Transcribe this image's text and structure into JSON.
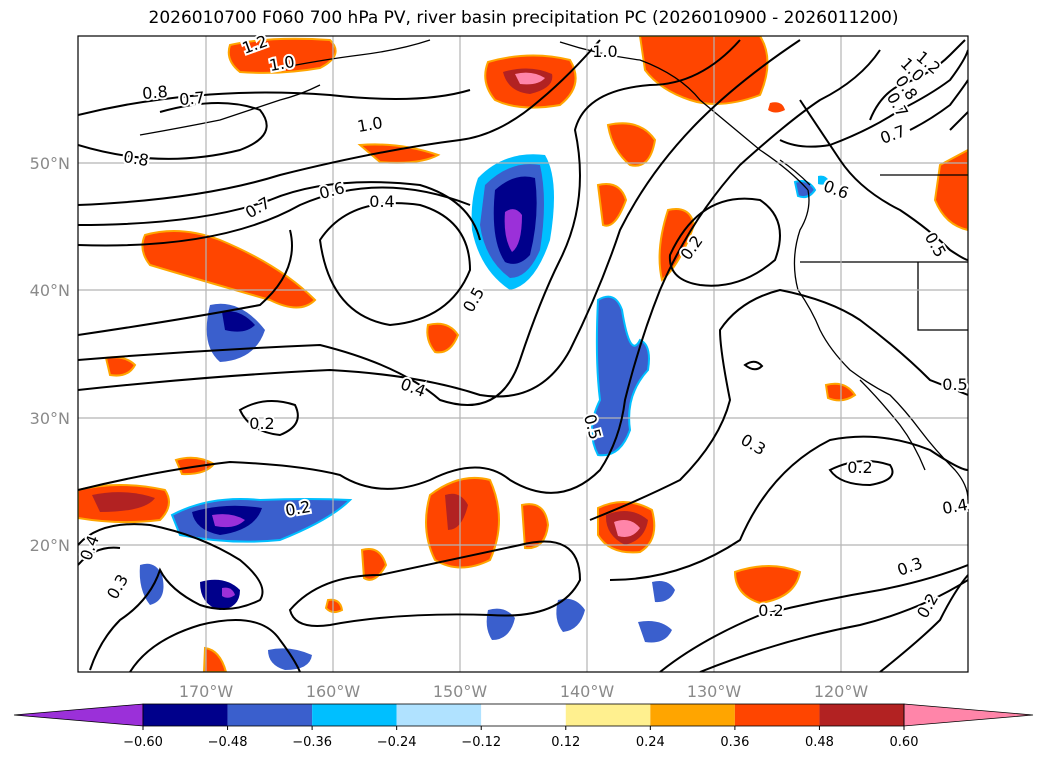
{
  "title": "2026010700 F060 700 hPa PV, river basin precipitation PC (2026010900 - 2026011200)",
  "lat_labels": [
    "50°N",
    "40°N",
    "30°N",
    "20°N"
  ],
  "lon_labels": [
    "170°W",
    "160°W",
    "150°W",
    "140°W",
    "130°W",
    "120°W"
  ],
  "contour_labels": [
    "1.2",
    "1.0",
    "0.8",
    "0.7",
    "0.8",
    "1.0",
    "0.7",
    "0.6",
    "0.4",
    "1.0",
    "1.2",
    "1.0",
    "0.8",
    "0.7",
    "0.7",
    "0.6",
    "0.5",
    "0.2",
    "0.5",
    "0.4",
    "0.2",
    "0.5",
    "0.3",
    "0.2",
    "0.5",
    "0.4",
    "0.2",
    "0.3",
    "0.4",
    "0.3",
    "0.2",
    "0.2"
  ],
  "colorbar": {
    "ticks": [
      "−0.60",
      "−0.48",
      "−0.36",
      "−0.24",
      "−0.12",
      "0.12",
      "0.24",
      "0.36",
      "0.48",
      "0.60"
    ],
    "colors": [
      "#9b30d9",
      "#00008b",
      "#3a5fcd",
      "#00bfff",
      "#b0e2ff",
      "#ffffff",
      "#fff08f",
      "#ffa500",
      "#ff4500",
      "#b22222",
      "#ff85a9",
      "#ff85a9"
    ]
  }
}
